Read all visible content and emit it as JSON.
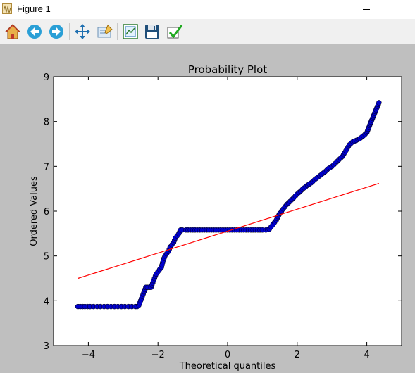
{
  "window": {
    "title": "Figure 1"
  },
  "toolbar": {
    "buttons": [
      {
        "name": "home-button",
        "icon": "home-icon"
      },
      {
        "name": "back-button",
        "icon": "back-arrow-icon"
      },
      {
        "name": "forward-button",
        "icon": "forward-arrow-icon"
      },
      {
        "name": "pan-button",
        "icon": "move-arrows-icon"
      },
      {
        "name": "zoom-button",
        "icon": "zoom-rect-icon"
      },
      {
        "name": "subplots-button",
        "icon": "subplots-icon"
      },
      {
        "name": "save-button",
        "icon": "floppy-disk-icon"
      },
      {
        "name": "edit-button",
        "icon": "checkmark-icon"
      }
    ]
  },
  "chart_data": {
    "type": "scatter",
    "title": "Probability Plot",
    "xlabel": "Theoretical quantiles",
    "ylabel": "Ordered Values",
    "xlim": [
      -5,
      5
    ],
    "ylim": [
      3,
      9
    ],
    "xticks": [
      -4,
      -2,
      0,
      2,
      4
    ],
    "xtick_labels": [
      "−4",
      "−2",
      "0",
      "2",
      "4"
    ],
    "yticks": [
      3,
      4,
      5,
      6,
      7,
      8,
      9
    ],
    "ytick_labels": [
      "3",
      "4",
      "5",
      "6",
      "7",
      "8",
      "9"
    ],
    "grid": false,
    "legend": "none",
    "colors": {
      "points": "#0000cc",
      "fit_line": "#ff0000",
      "axes_bg": "#ffffff"
    },
    "series": [
      {
        "kind": "points",
        "x": [
          -4.3,
          -4.1,
          -3.95,
          -3.85,
          -3.75,
          -3.65,
          -3.55,
          -3.45,
          -3.35,
          -3.25,
          -3.15,
          -3.05,
          -2.95,
          -2.85,
          -2.75,
          -2.65,
          -2.6,
          -2.55,
          -2.5,
          -2.45,
          -2.4,
          -2.35,
          -2.3,
          -2.25,
          -2.2,
          -2.15,
          -2.1,
          -2.05,
          -2.0,
          -1.95,
          -1.9,
          -1.85,
          -1.8,
          -1.75,
          -1.7,
          -1.65,
          -1.6,
          -1.55,
          -1.5,
          -1.45,
          -1.4,
          -1.35,
          -1.3,
          -1.2,
          -1.0,
          -0.8,
          -0.6,
          -0.4,
          -0.2,
          0.0,
          0.2,
          0.4,
          0.6,
          0.8,
          1.0,
          1.1,
          1.2,
          1.25,
          1.3,
          1.35,
          1.4,
          1.45,
          1.5,
          1.55,
          1.6,
          1.65,
          1.7,
          1.8,
          1.9,
          2.0,
          2.1,
          2.2,
          2.3,
          2.4,
          2.5,
          2.6,
          2.7,
          2.8,
          2.9,
          3.0,
          3.1,
          3.2,
          3.3,
          3.4,
          3.5,
          3.6,
          3.7,
          3.8,
          3.9,
          4.0,
          4.1,
          4.35
        ],
        "y": [
          3.87,
          3.87,
          3.87,
          3.87,
          3.87,
          3.87,
          3.87,
          3.87,
          3.87,
          3.87,
          3.87,
          3.87,
          3.87,
          3.87,
          3.87,
          3.87,
          3.87,
          3.9,
          4.0,
          4.1,
          4.2,
          4.3,
          4.3,
          4.3,
          4.3,
          4.4,
          4.5,
          4.6,
          4.65,
          4.7,
          4.75,
          4.9,
          5.0,
          5.05,
          5.1,
          5.2,
          5.25,
          5.3,
          5.4,
          5.45,
          5.5,
          5.58,
          5.58,
          5.58,
          5.58,
          5.58,
          5.58,
          5.58,
          5.58,
          5.58,
          5.58,
          5.58,
          5.58,
          5.58,
          5.58,
          5.58,
          5.6,
          5.65,
          5.7,
          5.75,
          5.8,
          5.88,
          5.95,
          6.0,
          6.05,
          6.1,
          6.15,
          6.22,
          6.3,
          6.38,
          6.45,
          6.52,
          6.58,
          6.63,
          6.7,
          6.76,
          6.82,
          6.88,
          6.95,
          7.0,
          7.07,
          7.15,
          7.22,
          7.35,
          7.48,
          7.55,
          7.58,
          7.62,
          7.68,
          7.75,
          7.95,
          8.42
        ]
      },
      {
        "kind": "fit_line",
        "x": [
          -4.3,
          4.35
        ],
        "y": [
          4.5,
          6.62
        ]
      }
    ]
  }
}
